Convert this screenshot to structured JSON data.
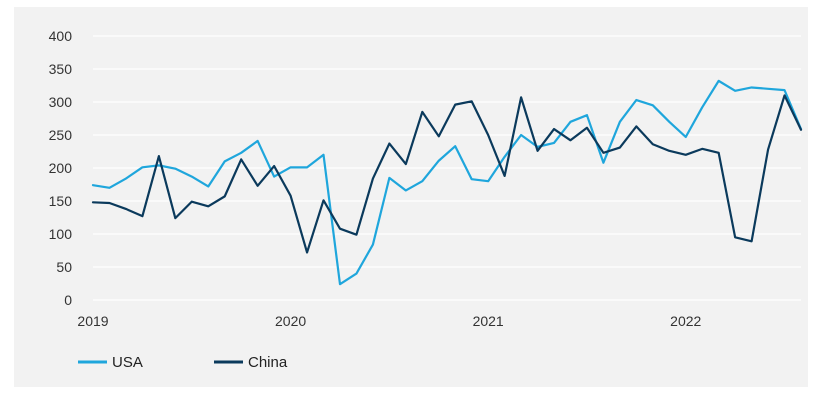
{
  "chart_data": {
    "type": "line",
    "title": "",
    "xlabel": "",
    "ylabel": "",
    "ylim": [
      0,
      400
    ],
    "yticks": [
      0,
      50,
      100,
      150,
      200,
      250,
      300,
      350,
      400
    ],
    "xticks": [
      "2019",
      "2020",
      "2021",
      "2022"
    ],
    "grid": "horizontal",
    "legend_position": "bottom-left",
    "x_start": "2019-01",
    "x_end": "2022-08",
    "x_step": "month",
    "series": [
      {
        "name": "USA",
        "color": "#1fa6dc",
        "values": [
          174,
          170,
          184,
          201,
          204,
          199,
          187,
          172,
          210,
          223,
          241,
          187,
          201,
          201,
          220,
          24,
          40,
          84,
          185,
          166,
          180,
          211,
          233,
          183,
          180,
          217,
          250,
          232,
          238,
          270,
          280,
          208,
          270,
          303,
          295,
          270,
          247,
          292,
          332,
          317,
          322,
          320,
          318,
          259
        ]
      },
      {
        "name": "China",
        "color": "#0b3a5c",
        "values": [
          148,
          147,
          138,
          127,
          218,
          124,
          149,
          142,
          157,
          213,
          173,
          203,
          158,
          72,
          151,
          108,
          99,
          184,
          237,
          206,
          285,
          248,
          296,
          301,
          250,
          188,
          307,
          226,
          259,
          242,
          261,
          223,
          231,
          263,
          236,
          226,
          220,
          229,
          223,
          95,
          89,
          228,
          310,
          258
        ]
      }
    ]
  }
}
